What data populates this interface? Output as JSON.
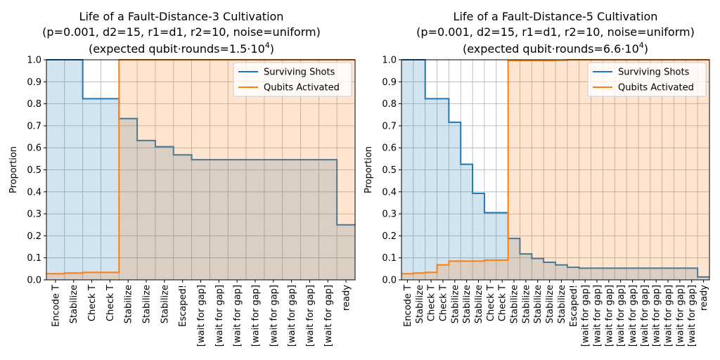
{
  "chart_data": [
    {
      "type": "area",
      "title_lines": [
        "Life of a Fault-Distance-3 Cultivation",
        "(p=0.001, d2=15, r1=d1, r2=10, noise=uniform)"
      ],
      "title_line3_prefix": "(expected qubit·rounds=1.5·10",
      "title_line3_exponent": "4",
      "title_line3_suffix": ")",
      "ylabel": "Proportion",
      "ylim": [
        0,
        1
      ],
      "yticks": [
        "0.0",
        "0.1",
        "0.2",
        "0.3",
        "0.4",
        "0.5",
        "0.6",
        "0.7",
        "0.8",
        "0.9",
        "1.0"
      ],
      "grid": true,
      "legend_position": "top-right",
      "categories": [
        "Encode T",
        "Stabilize",
        "Check T",
        "Check T",
        "Stabilize",
        "Stabilize",
        "Stabilize",
        "Escaped!",
        "[wait for gap]",
        "[wait for gap]",
        "[wait for gap]",
        "[wait for gap]",
        "[wait for gap]",
        "[wait for gap]",
        "[wait for gap]",
        "[wait for gap]",
        "ready"
      ],
      "series": [
        {
          "name": "Surviving Shots",
          "color": "#1f77b4",
          "values": [
            1.0,
            1.0,
            0.823,
            0.823,
            0.733,
            0.633,
            0.605,
            0.568,
            0.546,
            0.546,
            0.546,
            0.546,
            0.546,
            0.546,
            0.546,
            0.546,
            0.25
          ]
        },
        {
          "name": "Qubits Activated",
          "color": "#ff7f0e",
          "values": [
            0.028,
            0.031,
            0.034,
            0.034,
            1.0,
            1.0,
            1.0,
            1.0,
            1.0,
            1.0,
            1.0,
            1.0,
            1.0,
            1.0,
            1.0,
            1.0,
            1.0
          ]
        }
      ]
    },
    {
      "type": "area",
      "title_lines": [
        "Life of a Fault-Distance-5 Cultivation",
        "(p=0.001, d2=15, r1=d1, r2=10, noise=uniform)"
      ],
      "title_line3_prefix": "(expected qubit·rounds=6.6·10",
      "title_line3_exponent": "4",
      "title_line3_suffix": ")",
      "ylabel": "Proportion",
      "ylim": [
        0,
        1
      ],
      "yticks": [
        "0.0",
        "0.1",
        "0.2",
        "0.3",
        "0.4",
        "0.5",
        "0.6",
        "0.7",
        "0.8",
        "0.9",
        "1.0"
      ],
      "grid": true,
      "legend_position": "top-right",
      "categories": [
        "Encode T",
        "Stabilize",
        "Check T",
        "Check T",
        "Stabilize",
        "Stabilize",
        "Stabilize",
        "Check T",
        "Check T",
        "Stabilize",
        "Stabilize",
        "Stabilize",
        "Stabilize",
        "Stabilize",
        "Escaped!",
        "[wait for gap]",
        "[wait for gap]",
        "[wait for gap]",
        "[wait for gap]",
        "[wait for gap]",
        "[wait for gap]",
        "[wait for gap]",
        "[wait for gap]",
        "[wait for gap]",
        "[wait for gap]",
        "ready"
      ],
      "series": [
        {
          "name": "Surviving Shots",
          "color": "#1f77b4",
          "values": [
            1.0,
            1.0,
            0.823,
            0.823,
            0.716,
            0.525,
            0.393,
            0.305,
            0.305,
            0.188,
            0.118,
            0.097,
            0.08,
            0.068,
            0.057,
            0.053,
            0.053,
            0.053,
            0.053,
            0.053,
            0.053,
            0.053,
            0.053,
            0.053,
            0.053,
            0.013
          ]
        },
        {
          "name": "Qubits Activated",
          "color": "#ff7f0e",
          "values": [
            0.028,
            0.031,
            0.034,
            0.068,
            0.085,
            0.085,
            0.085,
            0.09,
            0.09,
            0.997,
            0.997,
            0.997,
            0.997,
            0.998,
            1.0,
            1.0,
            1.0,
            1.0,
            1.0,
            1.0,
            1.0,
            1.0,
            1.0,
            1.0,
            1.0,
            1.0
          ]
        }
      ]
    }
  ]
}
